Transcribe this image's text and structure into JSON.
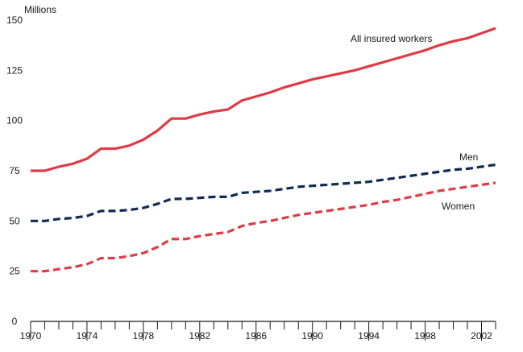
{
  "chart_data": {
    "type": "line",
    "ylabel": "Millions",
    "xlim": [
      1970,
      2003
    ],
    "ylim": [
      0,
      150
    ],
    "yticks": [
      0,
      25,
      50,
      75,
      100,
      125,
      150
    ],
    "xtick_labels": [
      "1970",
      "1974",
      "1978",
      "1982",
      "1986",
      "1990",
      "1994",
      "1998",
      "2002"
    ],
    "xtick_values": [
      1970,
      1974,
      1978,
      1982,
      1986,
      1990,
      1994,
      1998,
      2002
    ],
    "grid": false,
    "x": [
      1970,
      1971,
      1972,
      1973,
      1974,
      1975,
      1976,
      1977,
      1978,
      1979,
      1980,
      1981,
      1982,
      1983,
      1984,
      1985,
      1986,
      1987,
      1988,
      1989,
      1990,
      1991,
      1992,
      1993,
      1994,
      1995,
      1996,
      1997,
      1998,
      1999,
      2000,
      2001,
      2002,
      2003
    ],
    "series": [
      {
        "name": "All insured workers",
        "label": "All insured workers",
        "color": "#e03a44",
        "dash": "solid",
        "values": [
          75,
          75,
          77,
          78.5,
          81,
          86,
          86,
          87.5,
          90.5,
          95,
          101,
          101,
          103,
          104.5,
          105.5,
          110,
          112,
          114,
          116.5,
          118.5,
          120.5,
          122,
          123.5,
          125,
          127,
          129,
          131,
          133,
          135,
          137.5,
          139.5,
          141,
          143.5,
          146
        ]
      },
      {
        "name": "Men",
        "label": "Men",
        "color": "#0f2b55",
        "dash": "dashed",
        "values": [
          50,
          50,
          51,
          51.5,
          52.5,
          55,
          55,
          55.5,
          56.5,
          58.5,
          61,
          61,
          61.5,
          62,
          62,
          64,
          64.5,
          65,
          66,
          67,
          67.5,
          68,
          68.5,
          69,
          69.5,
          70.5,
          71.5,
          72.5,
          73.5,
          74.5,
          75.5,
          76,
          77,
          78
        ]
      },
      {
        "name": "Women",
        "label": "Women",
        "color": "#e03a44",
        "dash": "dashed",
        "values": [
          25,
          25,
          26,
          27,
          28.5,
          31.5,
          31.5,
          32.5,
          34,
          37,
          41,
          41,
          42.5,
          43.5,
          44.5,
          47.5,
          49,
          50,
          51.5,
          53,
          54,
          55,
          56,
          57,
          58,
          59.5,
          60.5,
          62,
          63.5,
          65,
          66,
          67,
          68,
          69
        ]
      }
    ]
  }
}
